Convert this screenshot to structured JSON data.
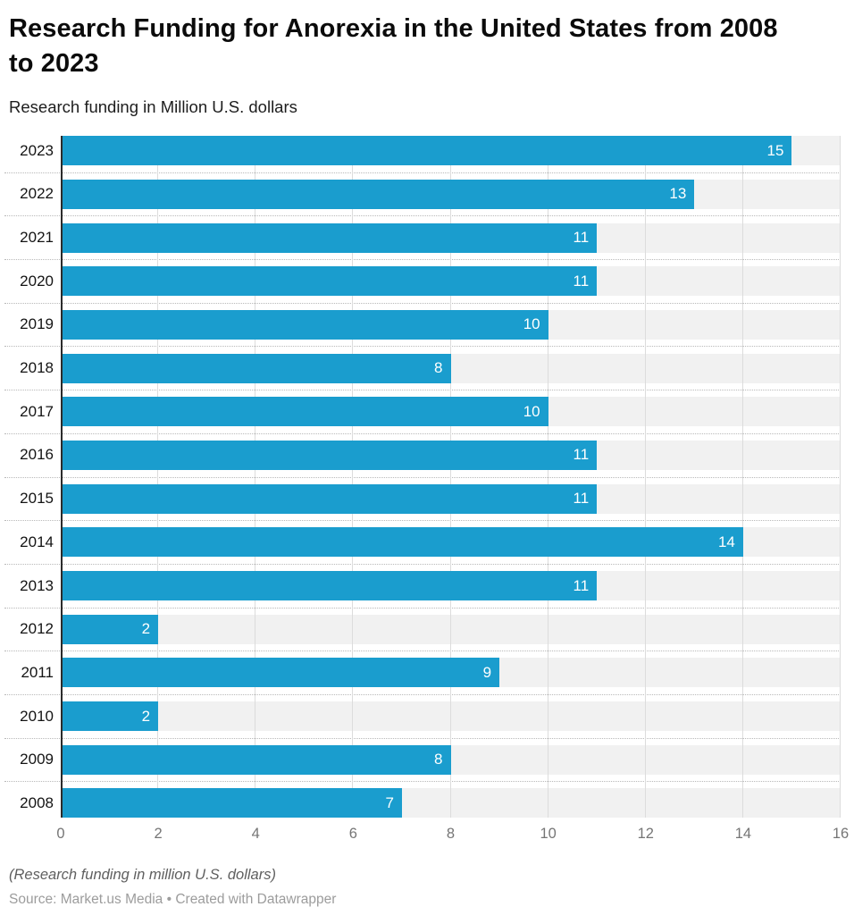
{
  "header": {
    "title": "Research Funding for Anorexia in the United States from 2008 to 2023",
    "subtitle": "Research funding in Million U.S. dollars"
  },
  "chart_data": {
    "type": "bar",
    "orientation": "horizontal",
    "title": "Research Funding for Anorexia in the United States from 2008 to 2023",
    "xlabel": "",
    "ylabel": "Research funding in Million U.S. dollars",
    "categories": [
      "2023",
      "2022",
      "2021",
      "2020",
      "2019",
      "2018",
      "2017",
      "2016",
      "2015",
      "2014",
      "2013",
      "2012",
      "2011",
      "2010",
      "2009",
      "2008"
    ],
    "values": [
      15,
      13,
      11,
      11,
      10,
      8,
      10,
      11,
      11,
      14,
      11,
      2,
      9,
      2,
      8,
      7
    ],
    "xlim": [
      0,
      16
    ],
    "x_ticks": [
      0,
      2,
      4,
      6,
      8,
      10,
      12,
      14,
      16
    ],
    "grid": true,
    "legend": "none",
    "bar_color": "#1a9dce",
    "track_color": "#f1f1f1",
    "value_label_color": "#ffffff"
  },
  "footer": {
    "note": "(Research funding in million U.S. dollars)",
    "source": "Source: Market.us Media • Created with Datawrapper"
  }
}
